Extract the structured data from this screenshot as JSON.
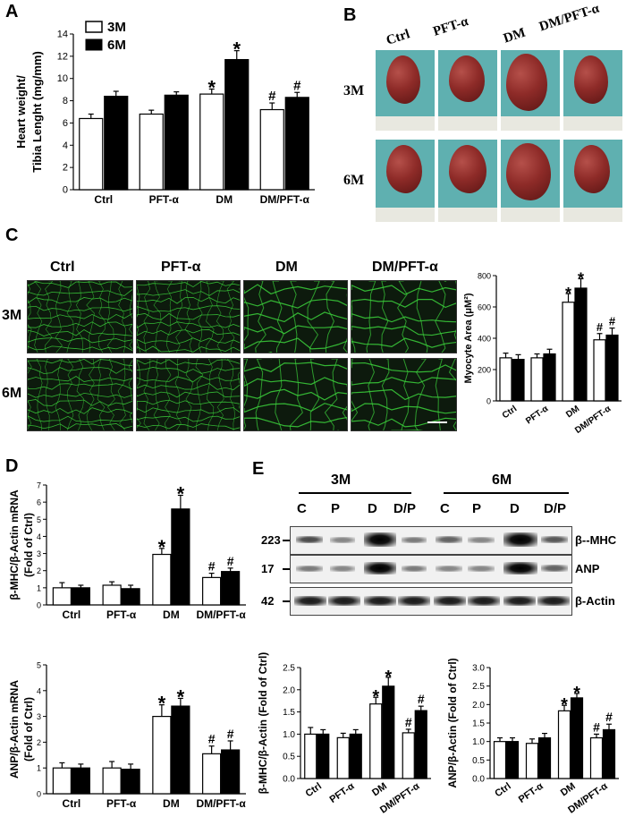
{
  "panels": {
    "A": "A",
    "B": "B",
    "C": "C",
    "D": "D",
    "E": "E"
  },
  "legend": {
    "s3": "3M",
    "s6": "6M"
  },
  "rows": {
    "r3": "3M",
    "r6": "6M"
  },
  "groups": [
    "Ctrl",
    "PFT-α",
    "DM",
    "DM/PFT-α"
  ],
  "markers": {
    "star": "*",
    "hash": "#"
  },
  "colors": {
    "white_bar": "#ffffff",
    "black_bar": "#000000",
    "micro_green": "#3cd23c",
    "photo_bg": "#5fb0b0"
  },
  "blot": {
    "top_3m": "3M",
    "top_6m": "6M",
    "lanes": [
      "C",
      "P",
      "D",
      "D/P",
      "C",
      "P",
      "D",
      "D/P"
    ],
    "mw": [
      "223",
      "17",
      "42"
    ],
    "proteins": [
      "β--MHC",
      "ANP",
      "β-Actin"
    ]
  },
  "chart_data": [
    {
      "id": "A",
      "type": "bar",
      "ylabel": "Heart weight/ Tibia Lenght (mg/mm)",
      "ylim": [
        0,
        14
      ],
      "yticks": [
        0,
        2,
        4,
        6,
        8,
        10,
        12,
        14
      ],
      "categories": [
        "Ctrl",
        "PFT-α",
        "DM",
        "DM/PFT-α"
      ],
      "series": [
        {
          "name": "3M",
          "values": [
            6.4,
            6.8,
            8.6,
            7.2
          ],
          "err": [
            0.4,
            0.35,
            0.45,
            0.6
          ],
          "marks": [
            "",
            "",
            "*",
            "#"
          ]
        },
        {
          "name": "6M",
          "values": [
            8.4,
            8.5,
            11.7,
            8.3
          ],
          "err": [
            0.45,
            0.3,
            0.8,
            0.45
          ],
          "marks": [
            "",
            "",
            "*",
            "#"
          ]
        }
      ]
    },
    {
      "id": "C",
      "type": "bar",
      "ylabel": "Myocyte Area (μM²)",
      "ylim": [
        0,
        800
      ],
      "yticks": [
        0,
        200,
        400,
        600,
        800
      ],
      "categories": [
        "Ctrl",
        "PFT-α",
        "DM",
        "DM/PFT-α"
      ],
      "series": [
        {
          "name": "3M",
          "values": [
            275,
            275,
            630,
            390
          ],
          "err": [
            30,
            25,
            55,
            40
          ],
          "marks": [
            "",
            "",
            "*",
            "#"
          ]
        },
        {
          "name": "6M",
          "values": [
            265,
            300,
            720,
            420
          ],
          "err": [
            30,
            30,
            60,
            45
          ],
          "marks": [
            "",
            "",
            "*",
            "#"
          ]
        }
      ]
    },
    {
      "id": "D1",
      "type": "bar",
      "ylabel": "β-MHC/β-Actin mRNA (Fold of Ctrl)",
      "ylim": [
        0,
        7
      ],
      "yticks": [
        0,
        1,
        2,
        3,
        4,
        5,
        6,
        7
      ],
      "categories": [
        "Ctrl",
        "PFT-α",
        "DM",
        "DM/PFT-α"
      ],
      "series": [
        {
          "name": "3M",
          "values": [
            1.0,
            1.15,
            2.95,
            1.6
          ],
          "err": [
            0.3,
            0.2,
            0.35,
            0.25
          ],
          "marks": [
            "",
            "",
            "*",
            "#"
          ]
        },
        {
          "name": "6M",
          "values": [
            1.0,
            0.95,
            5.6,
            1.95
          ],
          "err": [
            0.15,
            0.2,
            0.8,
            0.2
          ],
          "marks": [
            "",
            "",
            "*",
            "#"
          ]
        }
      ]
    },
    {
      "id": "D2",
      "type": "bar",
      "ylabel": "ANP/β-Actin mRNA (Fold of Ctrl)",
      "ylim": [
        0,
        5
      ],
      "yticks": [
        0,
        1,
        2,
        3,
        4,
        5
      ],
      "categories": [
        "Ctrl",
        "PFT-α",
        "DM",
        "DM/PFT-α"
      ],
      "series": [
        {
          "name": "3M",
          "values": [
            1.0,
            1.0,
            3.0,
            1.55
          ],
          "err": [
            0.2,
            0.25,
            0.45,
            0.3
          ],
          "marks": [
            "",
            "",
            "*",
            "#"
          ]
        },
        {
          "name": "6M",
          "values": [
            1.0,
            0.95,
            3.4,
            1.7
          ],
          "err": [
            0.15,
            0.2,
            0.3,
            0.35
          ],
          "marks": [
            "",
            "",
            "*",
            "#"
          ]
        }
      ]
    },
    {
      "id": "E1",
      "type": "bar",
      "ylabel": "β-MHC/β-Actin (Fold of Ctrl)",
      "ylim": [
        0,
        2.5
      ],
      "yticks": [
        "0.0",
        "0.5",
        "1.0",
        "1.5",
        "2.0",
        "2.5"
      ],
      "categories": [
        "Ctrl",
        "PFT-α",
        "DM",
        "DM/PFT-α"
      ],
      "series": [
        {
          "name": "3M",
          "values": [
            1.0,
            0.92,
            1.68,
            1.03
          ],
          "err": [
            0.15,
            0.1,
            0.15,
            0.08
          ],
          "marks": [
            "",
            "",
            "*",
            "#"
          ]
        },
        {
          "name": "6M",
          "values": [
            1.0,
            1.0,
            2.08,
            1.53
          ],
          "err": [
            0.1,
            0.1,
            0.2,
            0.1
          ],
          "marks": [
            "",
            "",
            "*",
            "#"
          ]
        }
      ]
    },
    {
      "id": "E2",
      "type": "bar",
      "ylabel": "ANP/β-Actin (Fold of Ctrl)",
      "ylim": [
        0,
        3
      ],
      "yticks": [
        "0.0",
        "0.5",
        "1.0",
        "1.5",
        "2.0",
        "2.5",
        "3.0"
      ],
      "categories": [
        "Ctrl",
        "PFT-α",
        "DM",
        "DM/PFT-α"
      ],
      "series": [
        {
          "name": "3M",
          "values": [
            1.0,
            0.95,
            1.83,
            1.1
          ],
          "err": [
            0.1,
            0.12,
            0.15,
            0.1
          ],
          "marks": [
            "",
            "",
            "*",
            "#"
          ]
        },
        {
          "name": "6M",
          "values": [
            1.0,
            1.1,
            2.18,
            1.32
          ],
          "err": [
            0.1,
            0.12,
            0.12,
            0.15
          ],
          "marks": [
            "",
            "",
            "*",
            "#"
          ]
        }
      ]
    }
  ]
}
